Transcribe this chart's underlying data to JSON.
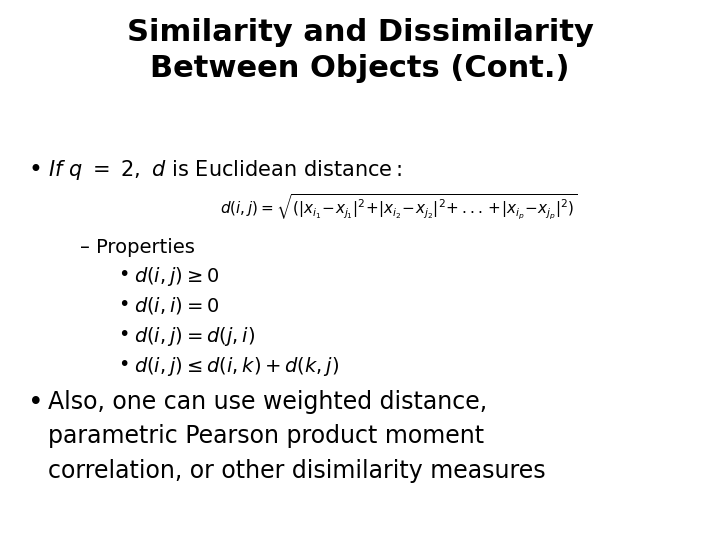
{
  "title_line1": "Similarity and Dissimilarity",
  "title_line2": "Between Objects (Cont.)",
  "background_color": "#ffffff",
  "text_color": "#000000",
  "title_fontsize": 22,
  "body_fontsize": 15,
  "sub_fontsize": 14,
  "props_fontsize": 14,
  "dash_label": "– Properties",
  "bullet2_line1": "Also, one can use weighted distance,",
  "bullet2_line2": "parametric Pearson product moment",
  "bullet2_line3": "correlation, or other disimilarity measures"
}
